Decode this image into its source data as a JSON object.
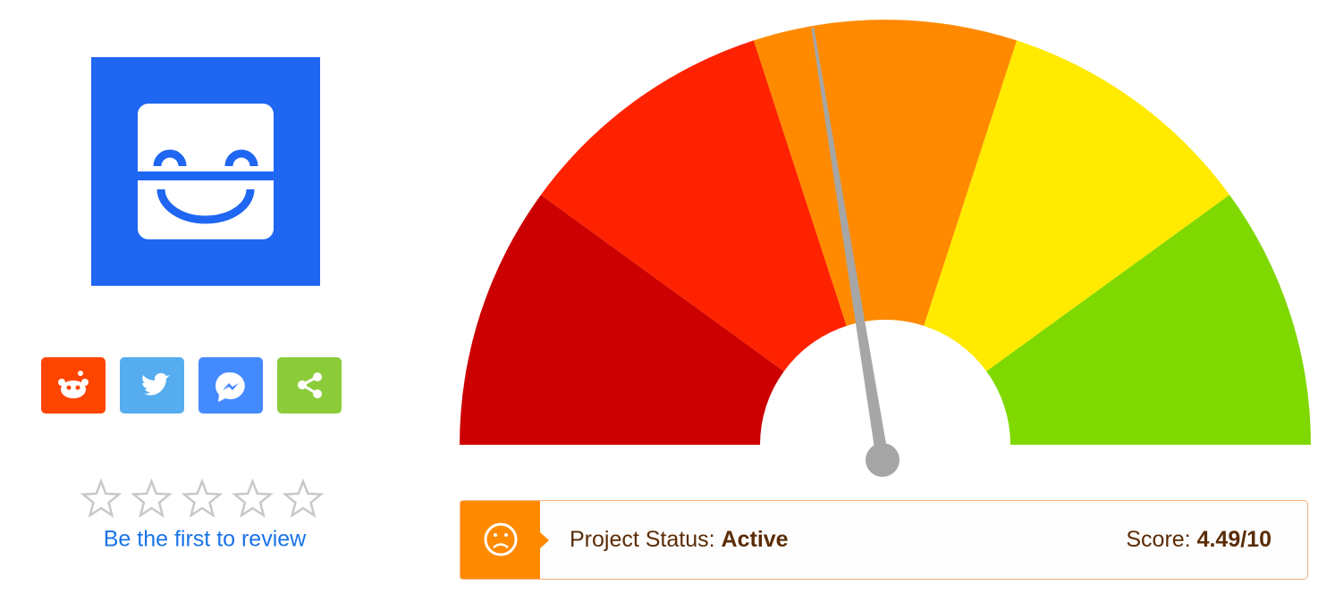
{
  "review": {
    "link": "Be the first to review"
  },
  "status": {
    "status_label": "Project Status:",
    "status_value": "Active",
    "score_label": "Score:",
    "score": {
      "value": 4.49,
      "out_of": 10,
      "label": "4.49/10"
    }
  }
}
